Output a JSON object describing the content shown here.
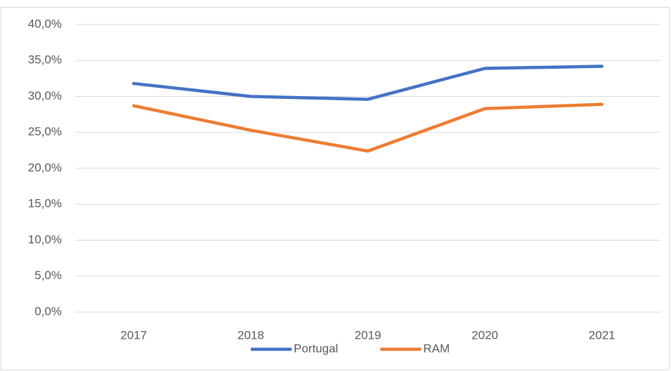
{
  "chart_data": {
    "type": "line",
    "categories": [
      "2017",
      "2018",
      "2019",
      "2020",
      "2021"
    ],
    "series": [
      {
        "name": "Portugal",
        "color": "#4472c4",
        "values": [
          31.8,
          30.0,
          29.6,
          33.9,
          34.2
        ]
      },
      {
        "name": "RAM",
        "color": "#ed7d31",
        "values": [
          28.7,
          25.3,
          22.4,
          28.3,
          28.9
        ]
      }
    ],
    "ylim": [
      0,
      40
    ],
    "yticks": [
      {
        "value": 0,
        "label": "0,0%"
      },
      {
        "value": 5,
        "label": "5,0%"
      },
      {
        "value": 10,
        "label": "10,0%"
      },
      {
        "value": 15,
        "label": "15,0%"
      },
      {
        "value": 20,
        "label": "20,0%"
      },
      {
        "value": 25,
        "label": "25,0%"
      },
      {
        "value": 30,
        "label": "30,0%"
      },
      {
        "value": 35,
        "label": "35,0%"
      },
      {
        "value": 40,
        "label": "40,0%"
      }
    ],
    "grid": true,
    "legend": "bottom"
  }
}
